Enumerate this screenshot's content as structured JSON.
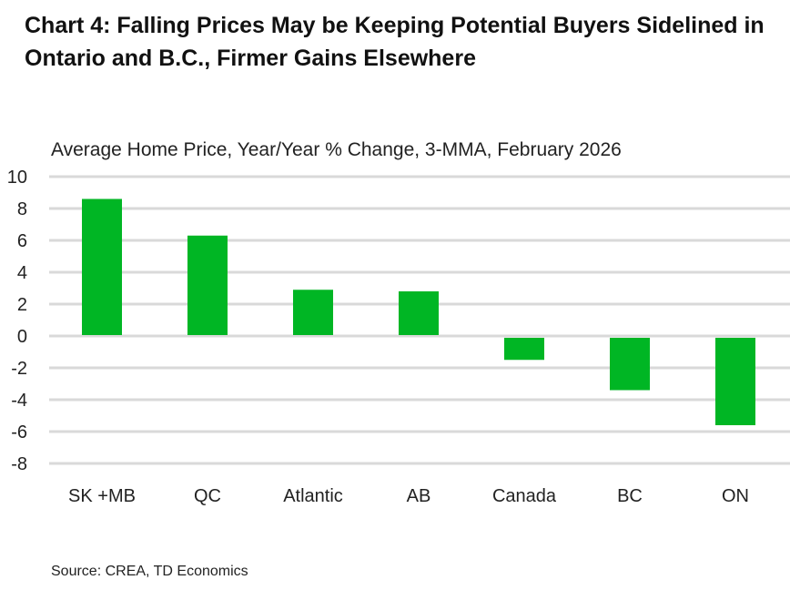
{
  "chart_data": {
    "type": "bar",
    "title": "Chart 4: Falling Prices May be Keeping Potential Buyers Sidelined in Ontario and B.C., Firmer Gains Elsewhere",
    "subtitle": "Average Home Price, Year/Year % Change, 3-MMA, February 2026",
    "source": "Source: CREA, TD Economics",
    "categories": [
      "SK +MB",
      "QC",
      "Atlantic",
      "AB",
      "Canada",
      "BC",
      "ON"
    ],
    "values": [
      8.6,
      6.3,
      2.9,
      2.8,
      -1.5,
      -3.4,
      -5.6
    ],
    "ylim": [
      -8,
      10
    ],
    "yticks": [
      10,
      8,
      6,
      4,
      2,
      0,
      -2,
      -4,
      -6,
      -8
    ],
    "grid": true,
    "bar_color": "#00B624",
    "grid_color": "#D9D9D9"
  }
}
